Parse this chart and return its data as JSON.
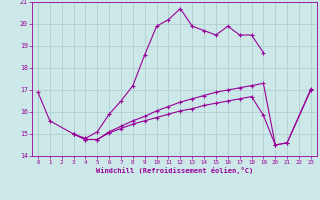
{
  "xlabel": "Windchill (Refroidissement éolien,°C)",
  "bg_color": "#cce8e8",
  "line_color": "#990099",
  "grid_color": "#aacccc",
  "xlim": [
    -0.5,
    23.5
  ],
  "ylim": [
    14,
    21
  ],
  "yticks": [
    14,
    15,
    16,
    17,
    18,
    19,
    20,
    21
  ],
  "xticks": [
    0,
    1,
    2,
    3,
    4,
    5,
    6,
    7,
    8,
    9,
    10,
    11,
    12,
    13,
    14,
    15,
    16,
    17,
    18,
    19,
    20,
    21,
    22,
    23
  ],
  "series": [
    {
      "x": [
        0,
        1,
        3,
        4,
        5,
        6,
        7,
        8,
        9,
        10,
        11,
        12,
        13,
        14,
        15,
        16,
        17,
        18,
        19
      ],
      "y": [
        16.9,
        15.6,
        15.0,
        14.8,
        15.1,
        15.9,
        16.5,
        17.2,
        18.6,
        19.9,
        20.2,
        20.7,
        19.9,
        19.7,
        19.5,
        19.9,
        19.5,
        19.5,
        18.7
      ]
    },
    {
      "x": [
        3,
        4,
        5,
        6,
        7,
        8,
        9,
        10,
        11,
        12,
        13,
        14,
        15,
        16,
        17,
        18,
        19,
        20,
        21,
        23
      ],
      "y": [
        15.0,
        14.75,
        14.75,
        15.05,
        15.25,
        15.45,
        15.6,
        15.75,
        15.9,
        16.05,
        16.15,
        16.3,
        16.4,
        16.5,
        16.6,
        16.7,
        15.85,
        14.5,
        14.6,
        17.0
      ]
    },
    {
      "x": [
        3,
        4,
        5,
        6,
        7,
        8,
        9,
        10,
        11,
        12,
        13,
        14,
        15,
        16,
        17,
        18,
        19,
        20,
        21,
        23
      ],
      "y": [
        15.0,
        14.75,
        14.75,
        15.1,
        15.35,
        15.6,
        15.8,
        16.05,
        16.25,
        16.45,
        16.6,
        16.75,
        16.9,
        17.0,
        17.1,
        17.2,
        17.3,
        14.5,
        14.6,
        17.05
      ]
    }
  ]
}
